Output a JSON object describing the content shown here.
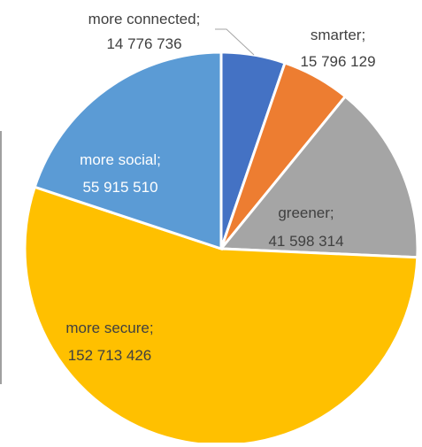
{
  "chart_data": {
    "type": "pie",
    "categories": [
      "more connected",
      "smarter",
      "greener",
      "more secure",
      "more social"
    ],
    "values": [
      14776736,
      15796129,
      41598314,
      152713426,
      55915510
    ],
    "data_labels": [
      {
        "name": "more connected;",
        "value": "14 776 736"
      },
      {
        "name": "smarter;",
        "value": "15 796 129"
      },
      {
        "name": "greener;",
        "value": "41 598 314"
      },
      {
        "name": "more secure;",
        "value": "152 713 426"
      },
      {
        "name": "more social;",
        "value": "55 915 510"
      }
    ],
    "colors": [
      "#4472C4",
      "#ED7D31",
      "#A5A5A5",
      "#FFC000",
      "#5B9BD5"
    ],
    "start_angle": "12 o'clock",
    "direction": "clockwise",
    "legend": "none"
  }
}
